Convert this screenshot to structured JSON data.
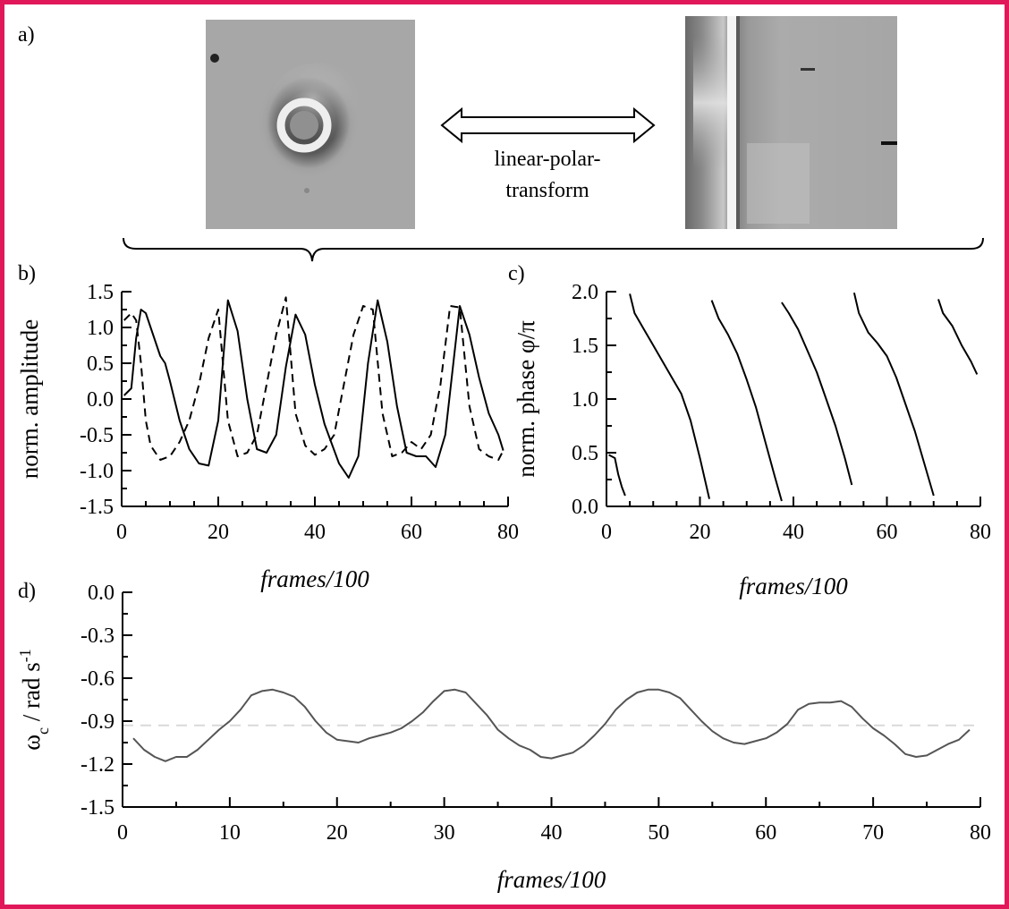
{
  "colors": {
    "border": "#e0185a",
    "ink": "#000000",
    "omega_line": "#555555",
    "mean_line": "#d9d9d9"
  },
  "panel_labels": {
    "a": "a)",
    "b": "b)",
    "c": "c)",
    "d": "d)"
  },
  "transform": {
    "line1": "linear-polar-",
    "line2": "transform"
  },
  "chart_data": [
    {
      "id": "b",
      "type": "line",
      "xlabel": "frames/100",
      "ylabel": "norm. amplitude",
      "xlim": [
        0,
        80
      ],
      "ylim": [
        -1.5,
        1.5
      ],
      "xticks": [
        "0",
        "20",
        "40",
        "60",
        "80"
      ],
      "yticks": [
        "1.5",
        "1.0",
        "0.5",
        "0.0",
        "-0.5",
        "-1.0",
        "-1.5"
      ],
      "series": [
        {
          "style": "solid",
          "x": [
            0.5,
            2,
            3,
            4,
            5,
            6,
            7,
            8,
            9,
            10,
            12,
            14,
            16,
            18,
            20,
            22,
            24,
            26,
            28,
            30,
            32,
            34,
            36,
            38,
            40,
            42,
            45,
            47,
            49,
            51,
            53,
            55,
            57,
            59,
            61,
            63,
            65,
            67,
            70,
            72,
            74,
            76,
            78,
            79
          ],
          "y": [
            0.05,
            0.15,
            0.85,
            1.25,
            1.2,
            1.0,
            0.8,
            0.6,
            0.5,
            0.25,
            -0.3,
            -0.7,
            -0.9,
            -0.93,
            -0.3,
            1.38,
            0.95,
            0.0,
            -0.7,
            -0.75,
            -0.5,
            0.45,
            1.18,
            0.9,
            0.2,
            -0.35,
            -0.9,
            -1.1,
            -0.8,
            0.5,
            1.38,
            0.8,
            -0.1,
            -0.75,
            -0.8,
            -0.8,
            -0.95,
            -0.5,
            1.3,
            0.9,
            0.3,
            -0.2,
            -0.5,
            -0.72
          ]
        },
        {
          "style": "dashed",
          "x": [
            0.5,
            2,
            3,
            4,
            5,
            6,
            8,
            10,
            12,
            14,
            16,
            18,
            20,
            22,
            24,
            26,
            28,
            30,
            32,
            34,
            36,
            38,
            40,
            42,
            44,
            46,
            48,
            50,
            52,
            54,
            56,
            58,
            60,
            62,
            64,
            66,
            68,
            70,
            72,
            74,
            76,
            78,
            79
          ],
          "y": [
            1.1,
            1.2,
            1.1,
            0.5,
            -0.3,
            -0.65,
            -0.85,
            -0.8,
            -0.6,
            -0.3,
            0.2,
            0.85,
            1.25,
            -0.3,
            -0.8,
            -0.75,
            -0.5,
            0.2,
            0.9,
            1.42,
            -0.2,
            -0.65,
            -0.78,
            -0.7,
            -0.5,
            0.2,
            0.9,
            1.3,
            1.25,
            -0.2,
            -0.8,
            -0.75,
            -0.6,
            -0.7,
            -0.5,
            0.2,
            1.3,
            1.28,
            -0.1,
            -0.7,
            -0.8,
            -0.85,
            -0.72
          ]
        }
      ]
    },
    {
      "id": "c",
      "type": "line",
      "xlabel": "frames/100",
      "ylabel": "norm. phase φ/π",
      "xlim": [
        0,
        80
      ],
      "ylim": [
        0.0,
        2.0
      ],
      "xticks": [
        "0",
        "20",
        "40",
        "60",
        "80"
      ],
      "yticks": [
        "2.0",
        "1.5",
        "1.0",
        "0.5",
        "0.0"
      ],
      "series": [
        {
          "style": "solid",
          "x": [
            0.5,
            1.8,
            2.5,
            3.3,
            4
          ],
          "y": [
            0.48,
            0.45,
            0.3,
            0.18,
            0.1
          ]
        },
        {
          "style": "solid",
          "x": [
            5,
            6,
            8,
            10,
            12,
            14,
            16,
            18,
            20,
            22
          ],
          "y": [
            1.98,
            1.8,
            1.65,
            1.5,
            1.35,
            1.2,
            1.05,
            0.8,
            0.45,
            0.07
          ]
        },
        {
          "style": "solid",
          "x": [
            22.5,
            24,
            26,
            28,
            30,
            32,
            34,
            36,
            37.5
          ],
          "y": [
            1.92,
            1.75,
            1.6,
            1.42,
            1.18,
            0.92,
            0.6,
            0.28,
            0.05
          ]
        },
        {
          "style": "solid",
          "x": [
            37.5,
            39,
            41,
            43,
            45,
            47,
            49,
            51,
            52.5
          ],
          "y": [
            1.9,
            1.8,
            1.65,
            1.45,
            1.25,
            1.0,
            0.75,
            0.45,
            0.2
          ]
        },
        {
          "style": "solid",
          "x": [
            53,
            54,
            56,
            58,
            60,
            62,
            64,
            66,
            68,
            70
          ],
          "y": [
            1.99,
            1.8,
            1.62,
            1.52,
            1.4,
            1.2,
            0.95,
            0.7,
            0.4,
            0.1
          ]
        },
        {
          "style": "solid",
          "x": [
            71,
            72,
            74,
            76,
            78,
            79.3
          ],
          "y": [
            1.93,
            1.8,
            1.68,
            1.5,
            1.35,
            1.23
          ]
        }
      ]
    },
    {
      "id": "d",
      "type": "line",
      "xlabel": "frames/100",
      "ylabel": "ωc / rad s-1",
      "ylabel_parts": {
        "omega": "ω",
        "sub": "c",
        "mid": " / rad s",
        "sup": "-1"
      },
      "xlim": [
        0,
        80
      ],
      "ylim": [
        -1.5,
        0.0
      ],
      "xticks": [
        "0",
        "10",
        "20",
        "30",
        "40",
        "50",
        "60",
        "70",
        "80"
      ],
      "yticks": [
        "0.0",
        "-0.3",
        "-0.6",
        "-0.9",
        "-1.2",
        "-1.5"
      ],
      "mean_line": -0.93,
      "series": [
        {
          "style": "solid",
          "x": [
            1,
            2,
            3,
            4,
            5,
            6,
            7,
            8,
            9,
            10,
            11,
            12,
            13,
            14,
            15,
            16,
            17,
            18,
            19,
            20,
            21,
            22,
            23,
            24,
            25,
            26,
            27,
            28,
            29,
            30,
            31,
            32,
            33,
            34,
            35,
            36,
            37,
            38,
            39,
            40,
            41,
            42,
            43,
            44,
            45,
            46,
            47,
            48,
            49,
            50,
            51,
            52,
            53,
            54,
            55,
            56,
            57,
            58,
            59,
            60,
            61,
            62,
            63,
            64,
            65,
            66,
            67,
            68,
            69,
            70,
            71,
            72,
            73,
            74,
            75,
            76,
            77,
            78,
            79
          ],
          "y": [
            -1.02,
            -1.1,
            -1.15,
            -1.18,
            -1.15,
            -1.15,
            -1.1,
            -1.03,
            -0.96,
            -0.9,
            -0.82,
            -0.72,
            -0.69,
            -0.68,
            -0.7,
            -0.73,
            -0.8,
            -0.9,
            -0.98,
            -1.03,
            -1.04,
            -1.05,
            -1.02,
            -1.0,
            -0.98,
            -0.95,
            -0.9,
            -0.84,
            -0.76,
            -0.69,
            -0.68,
            -0.7,
            -0.78,
            -0.86,
            -0.96,
            -1.02,
            -1.07,
            -1.1,
            -1.15,
            -1.16,
            -1.14,
            -1.12,
            -1.07,
            -1.0,
            -0.92,
            -0.82,
            -0.75,
            -0.7,
            -0.68,
            -0.68,
            -0.7,
            -0.74,
            -0.82,
            -0.9,
            -0.97,
            -1.02,
            -1.05,
            -1.06,
            -1.04,
            -1.02,
            -0.98,
            -0.92,
            -0.82,
            -0.78,
            -0.77,
            -0.77,
            -0.76,
            -0.8,
            -0.88,
            -0.95,
            -1.0,
            -1.06,
            -1.13,
            -1.15,
            -1.14,
            -1.1,
            -1.06,
            -1.03,
            -0.96
          ]
        }
      ]
    }
  ]
}
